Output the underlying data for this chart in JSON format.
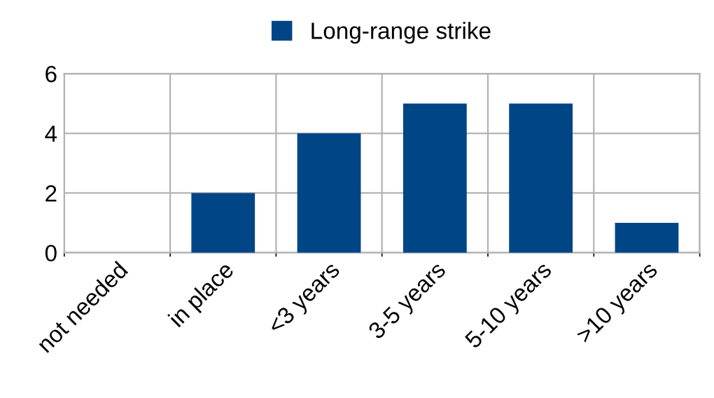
{
  "chart_data": {
    "type": "bar",
    "categories": [
      "not needed",
      "in place",
      "<3 years",
      "3-5 years",
      "5-10 years",
      ">10 years"
    ],
    "series": [
      {
        "name": "Long-range strike",
        "color": "#004586",
        "values": [
          0,
          2,
          4,
          5,
          5,
          1
        ]
      }
    ],
    "ylim": [
      0,
      6
    ],
    "yticks": [
      0,
      2,
      4,
      6
    ],
    "grid": true,
    "legend": "top"
  }
}
